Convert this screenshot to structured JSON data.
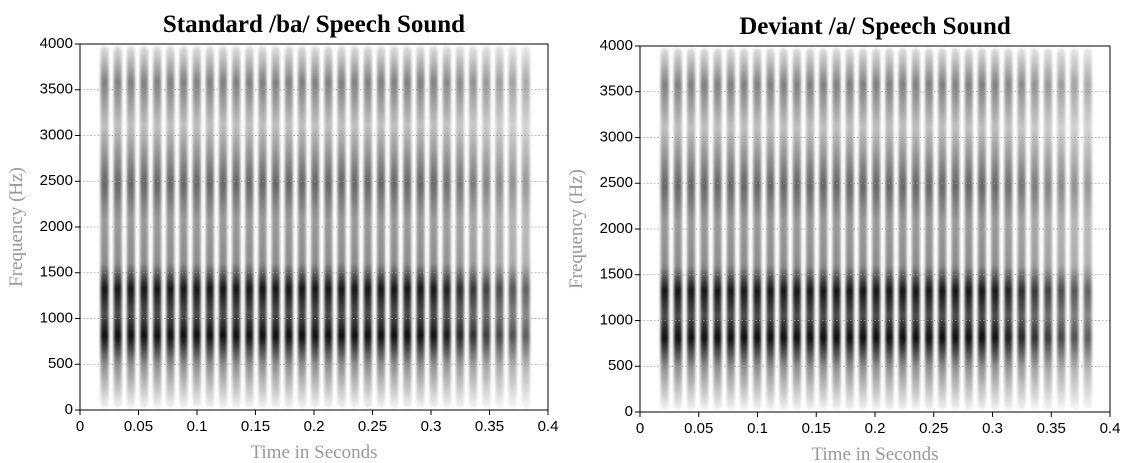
{
  "chart_data": [
    {
      "type": "spectrogram",
      "title": "Standard /ba/ Speech Sound",
      "x_label": "Time in Seconds",
      "y_label": "Frequency (Hz)",
      "xlim": [
        0,
        0.4
      ],
      "xticks": [
        0,
        0.05,
        0.1,
        0.15,
        0.2,
        0.25,
        0.3,
        0.35,
        0.4
      ],
      "ylim": [
        0,
        4000
      ],
      "yticks": [
        0,
        500,
        1000,
        1500,
        2000,
        2500,
        3000,
        3500,
        4000
      ],
      "grid": true
    },
    {
      "type": "spectrogram",
      "title": "Deviant /a/ Speech Sound",
      "x_label": "Time in Seconds",
      "y_label": "Frequency (Hz)",
      "xlim": [
        0,
        0.4
      ],
      "xticks": [
        0,
        0.05,
        0.1,
        0.15,
        0.2,
        0.25,
        0.3,
        0.35,
        0.4
      ],
      "ylim": [
        0,
        4000
      ],
      "yticks": [
        0,
        500,
        1000,
        1500,
        2000,
        2500,
        3000,
        3500,
        4000
      ],
      "grid": true
    }
  ]
}
